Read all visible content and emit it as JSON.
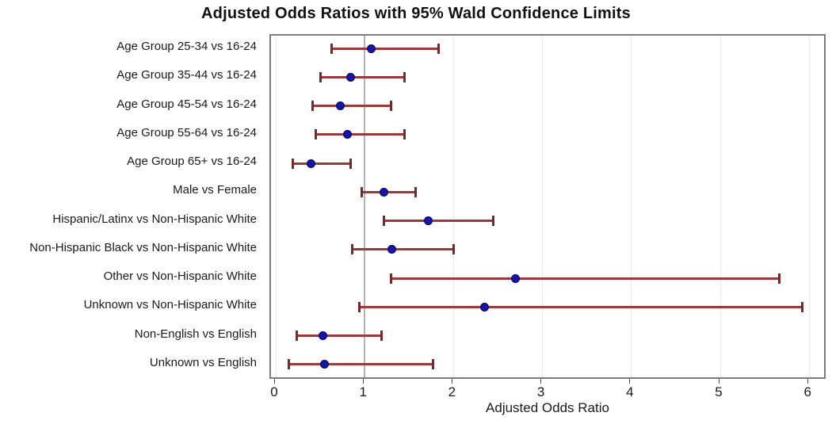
{
  "chart_data": {
    "type": "scatter",
    "subtype": "forest-plot-with-error-bars",
    "title": "Adjusted Odds Ratios with 95% Wald Confidence Limits",
    "xlabel": "Adjusted Odds Ratio",
    "xlim": [
      -0.05,
      6.2
    ],
    "xticks": [
      0,
      1,
      2,
      3,
      4,
      5,
      6
    ],
    "reference_line_x": 1,
    "grid": true,
    "legend": "none",
    "categories": [
      "Age Group 25-34 vs 16-24",
      "Age Group 35-44 vs 16-24",
      "Age Group 45-54 vs 16-24",
      "Age Group 55-64 vs 16-24",
      "Age Group 65+ vs 16-24",
      "Male vs Female",
      "Hispanic/Latinx vs Non-Hispanic White",
      "Non-Hispanic Black vs Non-Hispanic White",
      "Other vs Non-Hispanic White",
      "Unknown vs Non-Hispanic White",
      "Non-English vs English",
      "Unknown vs English"
    ],
    "series": [
      {
        "name": "Adjusted Odds Ratio (95% Wald CI)",
        "points": [
          {
            "or": 1.07,
            "lcl": 0.63,
            "ucl": 1.83
          },
          {
            "or": 0.84,
            "lcl": 0.5,
            "ucl": 1.45
          },
          {
            "or": 0.73,
            "lcl": 0.41,
            "ucl": 1.3
          },
          {
            "or": 0.81,
            "lcl": 0.45,
            "ucl": 1.45
          },
          {
            "or": 0.4,
            "lcl": 0.19,
            "ucl": 0.84
          },
          {
            "or": 1.22,
            "lcl": 0.97,
            "ucl": 1.57
          },
          {
            "or": 1.72,
            "lcl": 1.22,
            "ucl": 2.45
          },
          {
            "or": 1.31,
            "lcl": 0.86,
            "ucl": 2.0
          },
          {
            "or": 2.7,
            "lcl": 1.3,
            "ucl": 5.66
          },
          {
            "or": 2.35,
            "lcl": 0.94,
            "ucl": 5.92
          },
          {
            "or": 0.53,
            "lcl": 0.24,
            "ucl": 1.19
          },
          {
            "or": 0.55,
            "lcl": 0.15,
            "ucl": 1.77
          }
        ]
      }
    ],
    "colors": {
      "marker": "#1515a8",
      "marker_edge": "#000060",
      "ci_line": "#9e3939",
      "ci_cap": "#772828",
      "gridline": "#e9e9e9",
      "reference_line": "#b3b3b3",
      "frame": "#7d7d7d",
      "text": "#1a1a1a"
    }
  }
}
